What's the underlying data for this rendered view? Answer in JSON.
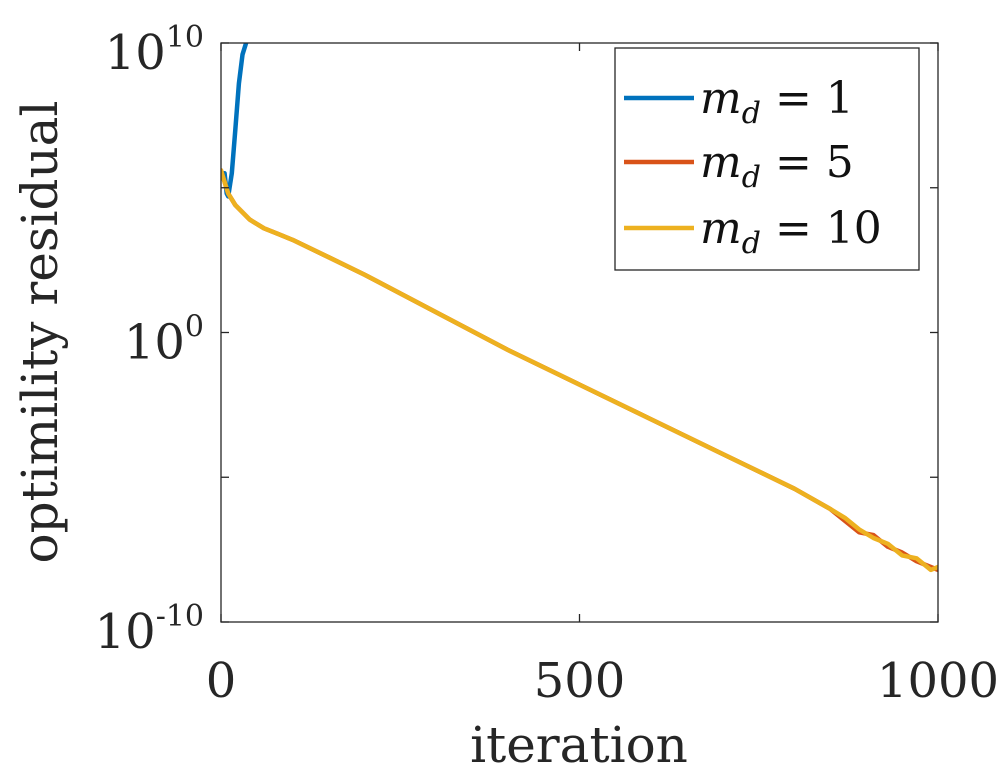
{
  "chart_data": {
    "type": "line",
    "xlabel": "iteration",
    "ylabel": "optimility residual",
    "xlim": [
      0,
      1000
    ],
    "ylim_log10": [
      -10,
      10
    ],
    "yscale": "log",
    "grid": false,
    "legend_position": "top-right",
    "x_ticks": [
      {
        "value": 0,
        "label": "0"
      },
      {
        "value": 500,
        "label": "500"
      },
      {
        "value": 1000,
        "label": "1000"
      }
    ],
    "y_ticks": [
      {
        "exp": 10,
        "base": "10",
        "sup": "10"
      },
      {
        "exp": 0,
        "base": "10",
        "sup": "0"
      },
      {
        "exp": -10,
        "base": "10",
        "sup": "-10"
      }
    ],
    "series": [
      {
        "name": "m_d = 1",
        "legend": {
          "var": "m",
          "sub": "d",
          "rest": " = 1"
        },
        "color": "#0072BD",
        "x": [
          5,
          8,
          10,
          15,
          20,
          25,
          30,
          35
        ],
        "y_log10": [
          5.5,
          4.8,
          4.7,
          5.5,
          7.0,
          8.6,
          9.6,
          10.0
        ]
      },
      {
        "name": "m_d = 5",
        "legend": {
          "var": "m",
          "sub": "d",
          "rest": " = 5"
        },
        "color": "#D95319",
        "x": [
          0,
          10,
          20,
          40,
          60,
          80,
          100,
          150,
          200,
          300,
          400,
          500,
          600,
          700,
          800,
          850,
          870,
          890,
          910,
          930,
          950,
          970,
          990,
          1000
        ],
        "y_log10": [
          5.6,
          4.8,
          4.4,
          3.9,
          3.6,
          3.4,
          3.2,
          2.6,
          2.0,
          0.7,
          -0.6,
          -1.8,
          -3.0,
          -4.2,
          -5.4,
          -6.1,
          -6.5,
          -6.9,
          -7.0,
          -7.4,
          -7.6,
          -7.9,
          -8.1,
          -8.2
        ]
      },
      {
        "name": "m_d = 10",
        "legend": {
          "var": "m",
          "sub": "d",
          "rest": " = 10"
        },
        "color": "#EDB120",
        "x": [
          0,
          10,
          20,
          40,
          60,
          80,
          100,
          150,
          200,
          300,
          400,
          500,
          600,
          700,
          800,
          850,
          870,
          890,
          910,
          930,
          950,
          970,
          990,
          1000
        ],
        "y_log10": [
          5.6,
          4.8,
          4.4,
          3.9,
          3.6,
          3.4,
          3.2,
          2.6,
          2.0,
          0.7,
          -0.6,
          -1.8,
          -3.0,
          -4.2,
          -5.4,
          -6.1,
          -6.4,
          -6.8,
          -7.1,
          -7.3,
          -7.7,
          -7.8,
          -8.2,
          -8.1
        ]
      }
    ]
  }
}
